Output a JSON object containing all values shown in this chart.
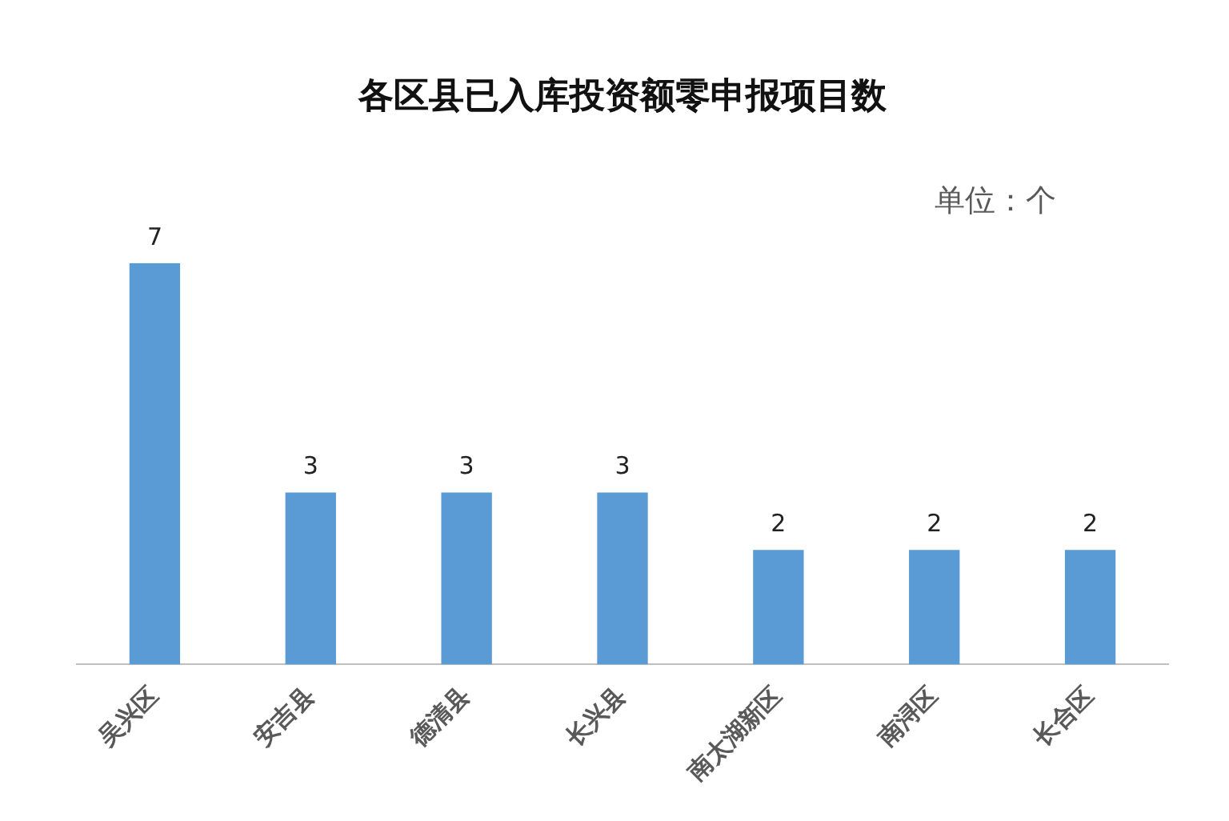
{
  "chart_data": {
    "type": "bar",
    "title": "各区县已入库投资额零申报项目数",
    "annotations": [
      "单位：个"
    ],
    "categories": [
      "吴兴区",
      "安吉县",
      "德清县",
      "长兴县",
      "南太湖新区",
      "南浔区",
      "长合区"
    ],
    "values": [
      7,
      3,
      3,
      3,
      2,
      2,
      2
    ],
    "color": "#5b9bd5",
    "data_labels": true,
    "grid": false,
    "legend": false
  }
}
